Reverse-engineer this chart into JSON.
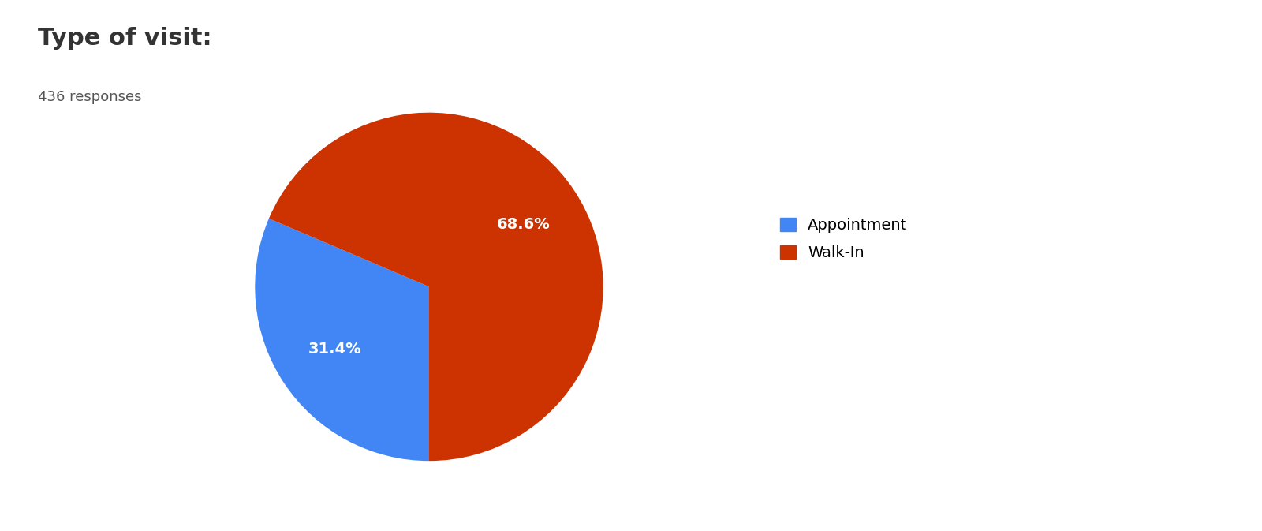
{
  "title": "Type of visit:",
  "subtitle": "436 responses",
  "labels": [
    "Appointment",
    "Walk-In"
  ],
  "values": [
    31.4,
    68.6
  ],
  "colors": [
    "#4285F4",
    "#CC3300"
  ],
  "background_color": "#ffffff",
  "title_fontsize": 22,
  "subtitle_fontsize": 13,
  "label_fontsize": 14,
  "legend_fontsize": 14,
  "startangle": -90
}
